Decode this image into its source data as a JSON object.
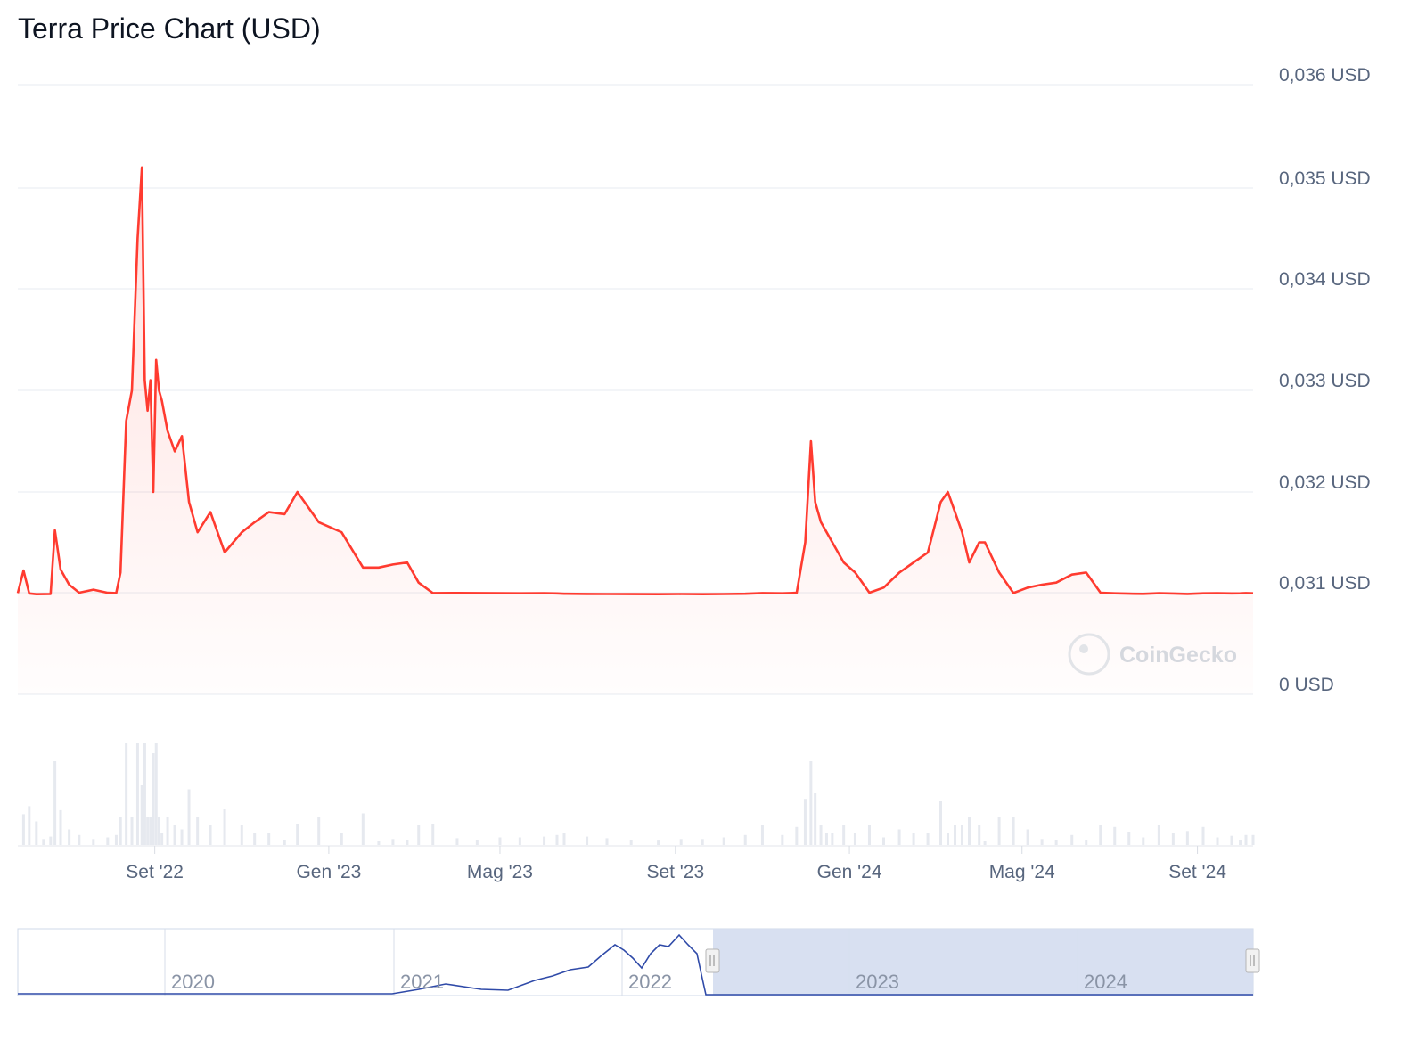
{
  "title": "Terra Price Chart (USD)",
  "watermark": "CoinGecko",
  "colors": {
    "line": "#ff3b30",
    "navigator_line": "#2f4aa8",
    "selection": "#d6def0",
    "grid": "#eceff3",
    "text": "#58667e"
  },
  "chart_data": {
    "type": "line",
    "title": "Terra Price Chart (USD)",
    "y_tick_labels": [
      "0 USD",
      "0,031 USD",
      "0,032 USD",
      "0,033 USD",
      "0,034 USD",
      "0,035 USD",
      "0,036 USD"
    ],
    "y_ticks": [
      0,
      0.031,
      0.032,
      0.033,
      0.034,
      0.035,
      0.036
    ],
    "x_tick_labels": [
      "Set '22",
      "Gen '23",
      "Mag '23",
      "Set '23",
      "Gen '24",
      "Mag '24",
      "Set '24"
    ],
    "x_ticks": [
      "2022-09-01",
      "2023-01-01",
      "2023-05-01",
      "2023-09-01",
      "2024-01-01",
      "2024-05-01",
      "2024-09-01"
    ],
    "x_range": [
      "2022-05-28",
      "2024-10-10"
    ],
    "grid": true,
    "series": [
      {
        "values_note": "price in USD",
        "x": [
          "2022-05-28",
          "2022-06-01",
          "2022-06-05",
          "2022-06-10",
          "2022-06-15",
          "2022-06-20",
          "2022-06-23",
          "2022-06-27",
          "2022-07-03",
          "2022-07-10",
          "2022-07-20",
          "2022-07-30",
          "2022-08-05",
          "2022-08-08",
          "2022-08-12",
          "2022-08-16",
          "2022-08-20",
          "2022-08-23",
          "2022-08-25",
          "2022-08-27",
          "2022-08-29",
          "2022-08-31",
          "2022-09-02",
          "2022-09-04",
          "2022-09-06",
          "2022-09-10",
          "2022-09-15",
          "2022-09-20",
          "2022-09-25",
          "2022-10-01",
          "2022-10-10",
          "2022-10-20",
          "2022-11-01",
          "2022-11-10",
          "2022-11-20",
          "2022-12-01",
          "2022-12-10",
          "2022-12-25",
          "2023-01-10",
          "2023-01-25",
          "2023-02-05",
          "2023-02-15",
          "2023-02-25",
          "2023-03-05",
          "2023-03-15",
          "2023-04-01",
          "2023-04-15",
          "2023-05-01",
          "2023-05-15",
          "2023-06-01",
          "2023-06-10",
          "2023-06-15",
          "2023-07-01",
          "2023-07-15",
          "2023-08-01",
          "2023-08-20",
          "2023-09-05",
          "2023-09-20",
          "2023-10-05",
          "2023-10-20",
          "2023-11-01",
          "2023-11-15",
          "2023-11-25",
          "2023-12-01",
          "2023-12-05",
          "2023-12-08",
          "2023-12-12",
          "2023-12-16",
          "2023-12-20",
          "2023-12-28",
          "2024-01-05",
          "2024-01-15",
          "2024-01-25",
          "2024-02-05",
          "2024-02-15",
          "2024-02-25",
          "2024-03-05",
          "2024-03-10",
          "2024-03-15",
          "2024-03-20",
          "2024-03-25",
          "2024-04-01",
          "2024-04-05",
          "2024-04-15",
          "2024-04-25",
          "2024-05-05",
          "2024-05-15",
          "2024-05-25",
          "2024-06-05",
          "2024-06-15",
          "2024-06-25",
          "2024-07-05",
          "2024-07-15",
          "2024-07-25",
          "2024-08-05",
          "2024-08-15",
          "2024-08-25",
          "2024-09-05",
          "2024-09-15",
          "2024-09-25",
          "2024-10-01",
          "2024-10-05",
          "2024-10-10"
        ],
        "values": [
          0.03088,
          0.03122,
          0.03078,
          0.03053,
          0.03056,
          0.03062,
          0.03162,
          0.03123,
          0.03108,
          0.031,
          0.03103,
          0.03098,
          0.0309,
          0.0312,
          0.0327,
          0.033,
          0.0345,
          0.0352,
          0.0331,
          0.0328,
          0.0331,
          0.032,
          0.0333,
          0.033,
          0.0329,
          0.0326,
          0.0324,
          0.03255,
          0.0319,
          0.0316,
          0.0318,
          0.0314,
          0.0316,
          0.0317,
          0.0318,
          0.03178,
          0.032,
          0.0317,
          0.0316,
          0.03125,
          0.03125,
          0.03128,
          0.0313,
          0.0311,
          0.03088,
          0.03092,
          0.0309,
          0.03085,
          0.0308,
          0.03086,
          0.03078,
          0.03068,
          0.03062,
          0.03058,
          0.03056,
          0.03055,
          0.03058,
          0.03055,
          0.0306,
          0.03068,
          0.03088,
          0.0308,
          0.03098,
          0.0315,
          0.0325,
          0.0319,
          0.0317,
          0.0316,
          0.0315,
          0.0313,
          0.0312,
          0.031,
          0.03105,
          0.0312,
          0.0313,
          0.0314,
          0.0319,
          0.032,
          0.0318,
          0.0316,
          0.0313,
          0.0315,
          0.0315,
          0.0312,
          0.0309,
          0.03105,
          0.03108,
          0.0311,
          0.03118,
          0.0312,
          0.031,
          0.03082,
          0.0307,
          0.03065,
          0.03085,
          0.03075,
          0.03062,
          0.0308,
          0.03085,
          0.03078,
          0.0308,
          0.03088,
          0.0308
        ]
      }
    ],
    "navigator": {
      "x_tick_labels": [
        "2020",
        "2021",
        "2022",
        "2023",
        "2024"
      ],
      "selection_range": [
        "2022-05-28",
        "2024-10-10"
      ]
    }
  }
}
